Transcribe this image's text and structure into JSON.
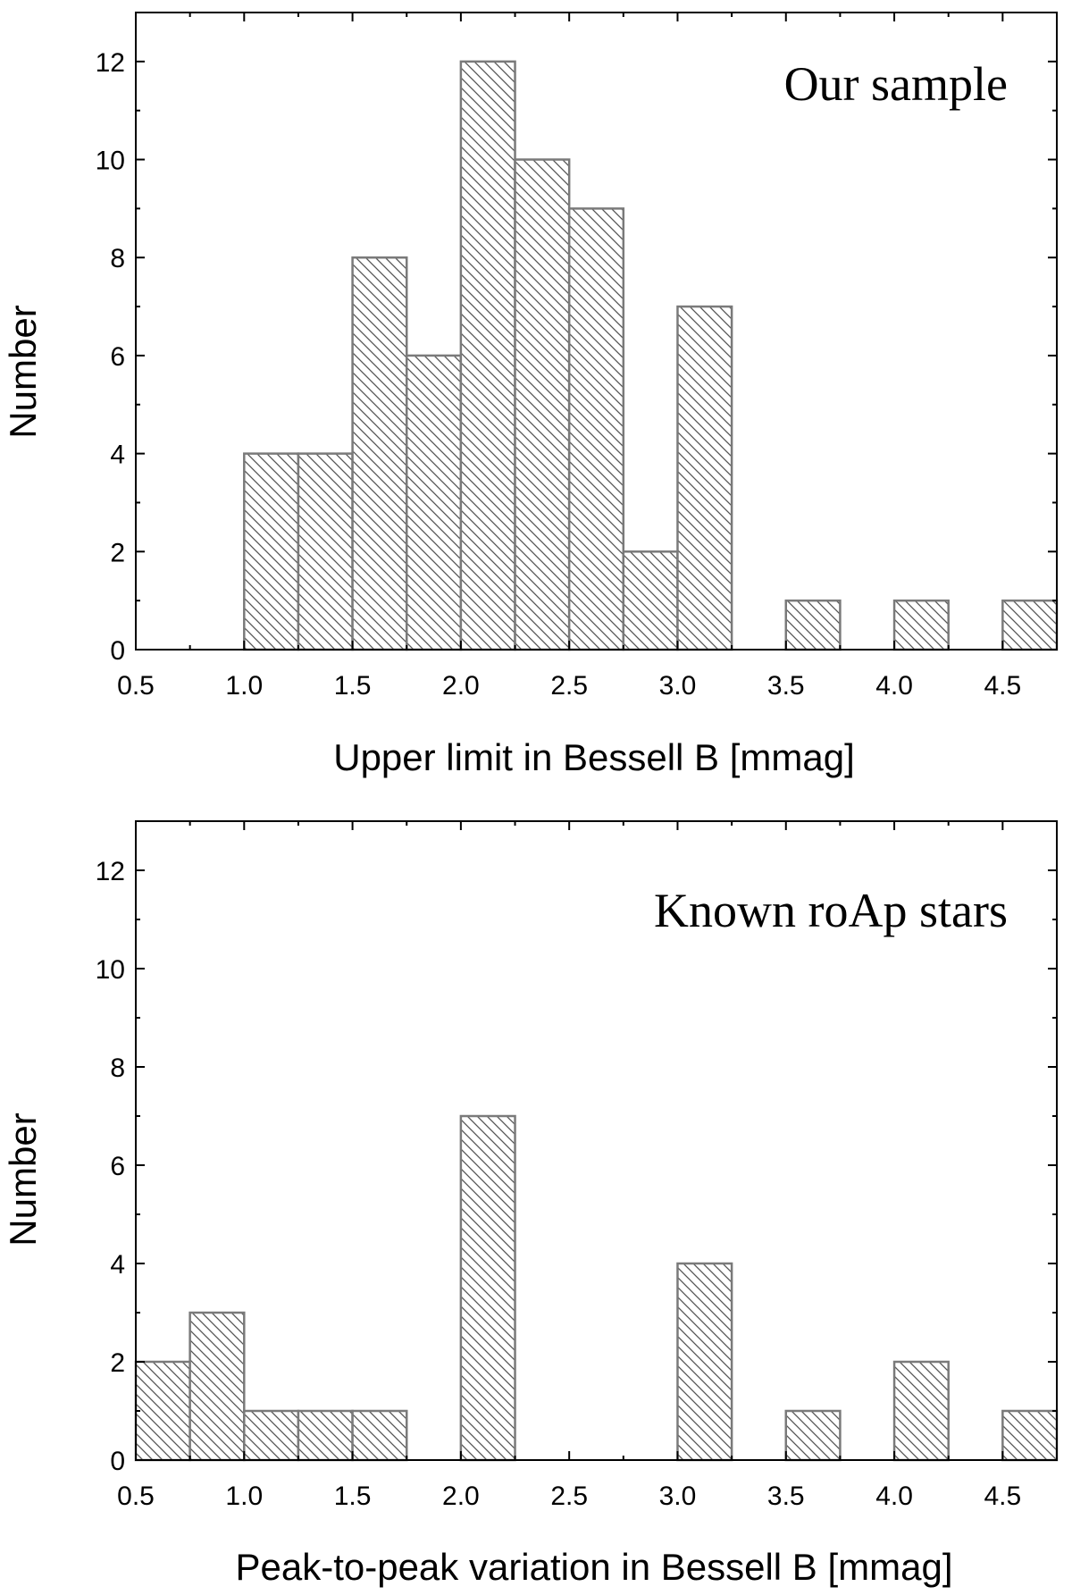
{
  "chart_data": [
    {
      "type": "bar",
      "title": "Our sample",
      "xlabel": "Upper limit in Bessell B [mmag]",
      "ylabel": "Number",
      "xlim": [
        0.5,
        4.75
      ],
      "ylim": [
        0,
        13
      ],
      "bin_width": 0.25,
      "x_ticks": [
        "0.5",
        "1.0",
        "1.5",
        "2.0",
        "2.5",
        "3.0",
        "3.5",
        "4.0",
        "4.5"
      ],
      "y_ticks": [
        "0",
        "2",
        "4",
        "6",
        "8",
        "10",
        "12"
      ],
      "bins": [
        {
          "x": 1.0,
          "value": 4
        },
        {
          "x": 1.25,
          "value": 4
        },
        {
          "x": 1.5,
          "value": 8
        },
        {
          "x": 1.75,
          "value": 6
        },
        {
          "x": 2.0,
          "value": 12
        },
        {
          "x": 2.25,
          "value": 10
        },
        {
          "x": 2.5,
          "value": 9
        },
        {
          "x": 2.75,
          "value": 2
        },
        {
          "x": 3.0,
          "value": 7
        },
        {
          "x": 3.5,
          "value": 1
        },
        {
          "x": 4.0,
          "value": 1
        },
        {
          "x": 4.5,
          "value": 1
        }
      ]
    },
    {
      "type": "bar",
      "title": "Known roAp stars",
      "xlabel": "Peak-to-peak variation in Bessell B [mmag]",
      "ylabel": "Number",
      "xlim": [
        0.5,
        4.75
      ],
      "ylim": [
        0,
        13
      ],
      "bin_width": 0.25,
      "x_ticks": [
        "0.5",
        "1.0",
        "1.5",
        "2.0",
        "2.5",
        "3.0",
        "3.5",
        "4.0",
        "4.5"
      ],
      "y_ticks": [
        "0",
        "2",
        "4",
        "6",
        "8",
        "10",
        "12"
      ],
      "bins": [
        {
          "x": 0.5,
          "value": 2
        },
        {
          "x": 0.75,
          "value": 3
        },
        {
          "x": 1.0,
          "value": 1
        },
        {
          "x": 1.25,
          "value": 1
        },
        {
          "x": 1.5,
          "value": 1
        },
        {
          "x": 2.0,
          "value": 7
        },
        {
          "x": 3.0,
          "value": 4
        },
        {
          "x": 3.5,
          "value": 1
        },
        {
          "x": 4.0,
          "value": 2
        },
        {
          "x": 4.5,
          "value": 1
        }
      ]
    }
  ]
}
